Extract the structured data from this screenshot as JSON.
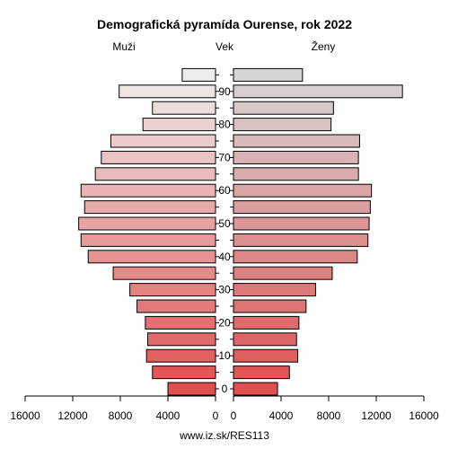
{
  "chart_data": {
    "type": "bar",
    "title": "Demografická pyramída Ourense, rok 2022",
    "left_label": "Muži",
    "center_label": "Vek",
    "right_label": "Ženy",
    "footer": "www.iz.sk/RES113",
    "age_labels": [
      "0",
      "10",
      "20",
      "30",
      "40",
      "50",
      "60",
      "70",
      "80",
      "90"
    ],
    "x_ticks": [
      "16000",
      "12000",
      "8000",
      "4000",
      "0",
      "4000",
      "8000",
      "12000",
      "16000"
    ],
    "xlim": [
      0,
      16000
    ],
    "categories": [
      "0-4",
      "5-9",
      "10-14",
      "15-19",
      "20-24",
      "25-29",
      "30-34",
      "35-39",
      "40-44",
      "45-49",
      "50-54",
      "55-59",
      "60-64",
      "65-69",
      "70-74",
      "75-79",
      "80-84",
      "85-89",
      "90-94",
      "95+"
    ],
    "series": [
      {
        "name": "Muži",
        "values": [
          4000,
          5300,
          5800,
          5700,
          5900,
          6600,
          7200,
          8600,
          10700,
          11300,
          11500,
          11000,
          11300,
          10100,
          9600,
          8800,
          6100,
          5300,
          8100,
          2800
        ]
      },
      {
        "name": "Ženy",
        "values": [
          3700,
          4700,
          5400,
          5300,
          5500,
          6100,
          6900,
          8300,
          10400,
          11300,
          11400,
          11500,
          11600,
          10500,
          10500,
          10600,
          8200,
          8400,
          14200,
          5800
        ]
      }
    ]
  }
}
